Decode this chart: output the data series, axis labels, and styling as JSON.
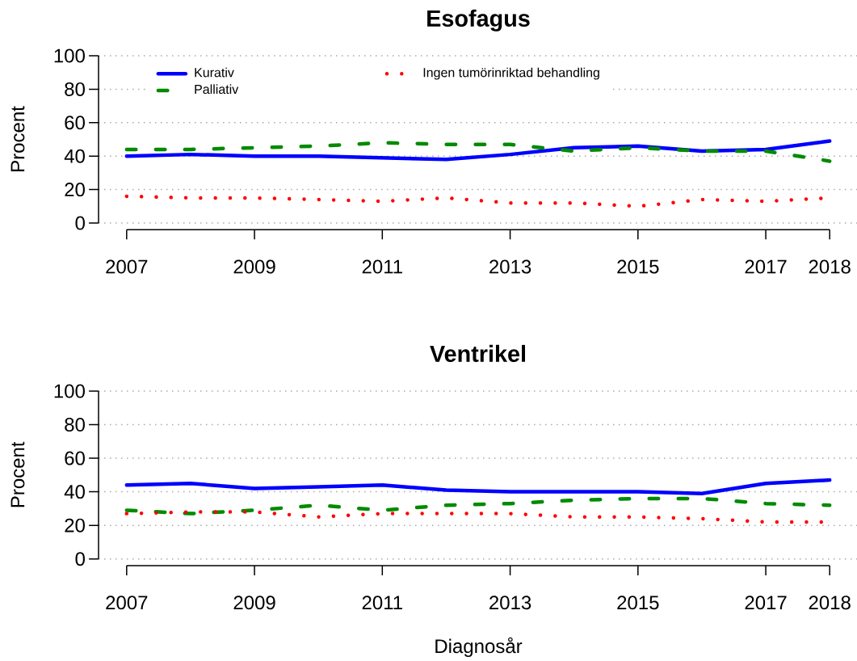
{
  "chart_data": [
    {
      "type": "line",
      "title": "Esofagus",
      "ylabel": "Procent",
      "x": [
        2007,
        2008,
        2009,
        2010,
        2011,
        2012,
        2013,
        2014,
        2015,
        2016,
        2017,
        2018
      ],
      "xlim": [
        2007,
        2018
      ],
      "xticks": [
        2007,
        2009,
        2011,
        2013,
        2015,
        2017,
        2018
      ],
      "ylim": [
        0,
        100
      ],
      "yticks": [
        0,
        20,
        40,
        60,
        80,
        100
      ],
      "grid": "y",
      "legend": "top left",
      "series": [
        {
          "name": "Kurativ",
          "color": "#0000ff",
          "line_style": "solid",
          "values": [
            40,
            41,
            40,
            40,
            39,
            38,
            41,
            45,
            46,
            43,
            44,
            49
          ]
        },
        {
          "name": "Palliativ",
          "color": "#008b00",
          "line_style": "dashed",
          "values": [
            44,
            44,
            45,
            46,
            48,
            47,
            47,
            43,
            45,
            43,
            43,
            37
          ]
        },
        {
          "name": "Ingen tumörinriktad behandling",
          "color": "#ff0000",
          "line_style": "dotted",
          "values": [
            16,
            15,
            15,
            14,
            13,
            15,
            12,
            12,
            10,
            14,
            13,
            15
          ]
        }
      ]
    },
    {
      "type": "line",
      "title": "Ventrikel",
      "xlabel": "Diagnosår",
      "ylabel": "Procent",
      "x": [
        2007,
        2008,
        2009,
        2010,
        2011,
        2012,
        2013,
        2014,
        2015,
        2016,
        2017,
        2018
      ],
      "xlim": [
        2007,
        2018
      ],
      "xticks": [
        2007,
        2009,
        2011,
        2013,
        2015,
        2017,
        2018
      ],
      "ylim": [
        0,
        100
      ],
      "yticks": [
        0,
        20,
        40,
        60,
        80,
        100
      ],
      "grid": "y",
      "series": [
        {
          "color": "#0000ff",
          "line_style": "solid",
          "values": [
            44,
            45,
            42,
            43,
            44,
            41,
            40,
            40,
            40,
            39,
            45,
            47
          ]
        },
        {
          "color": "#008b00",
          "line_style": "dashed",
          "values": [
            29,
            27,
            29,
            32,
            29,
            32,
            33,
            35,
            36,
            36,
            33,
            32
          ]
        },
        {
          "color": "#ff0000",
          "line_style": "dotted",
          "values": [
            27,
            28,
            28,
            25,
            27,
            27,
            27,
            25,
            25,
            24,
            22,
            22
          ]
        }
      ]
    }
  ]
}
